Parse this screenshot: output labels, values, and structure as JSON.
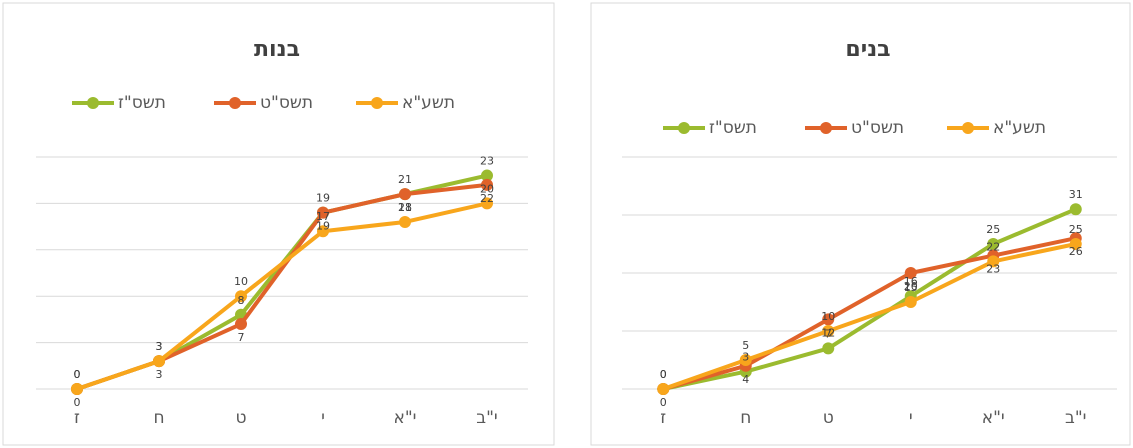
{
  "chart_data": [
    {
      "type": "line",
      "title": "בנות",
      "categories": [
        "ז",
        "ח",
        "ט",
        "י",
        "י\"א",
        "י\"ב"
      ],
      "series": [
        {
          "name": "תשס\"ז",
          "color": "#9bbb2f",
          "values": [
            0,
            3,
            8,
            19,
            21,
            23
          ]
        },
        {
          "name": "תשס\"ט",
          "color": "#e0622a",
          "values": [
            0,
            3,
            7,
            19,
            21,
            22
          ]
        },
        {
          "name": "תשע\"א",
          "color": "#f8a61c",
          "values": [
            0,
            3,
            10,
            17,
            18,
            20
          ]
        }
      ],
      "ylim": [
        0,
        25
      ],
      "yticks": [
        0,
        5,
        10,
        15,
        20,
        25
      ],
      "grid": true,
      "legend": "top"
    },
    {
      "type": "line",
      "title": "בנים",
      "categories": [
        "ז",
        "ח",
        "ט",
        "י",
        "י\"א",
        "י\"ב"
      ],
      "series": [
        {
          "name": "תשס\"ז",
          "color": "#9bbb2f",
          "values": [
            0,
            3,
            7,
            16,
            25,
            31
          ]
        },
        {
          "name": "תשס\"ט",
          "color": "#e0622a",
          "values": [
            0,
            4,
            12,
            20,
            23,
            26
          ]
        },
        {
          "name": "תשע\"א",
          "color": "#f8a61c",
          "values": [
            0,
            5,
            10,
            15,
            22,
            25
          ]
        }
      ],
      "ylim": [
        0,
        40
      ],
      "yticks": [
        0,
        10,
        20,
        30,
        40
      ],
      "grid": true,
      "legend": "top"
    }
  ]
}
